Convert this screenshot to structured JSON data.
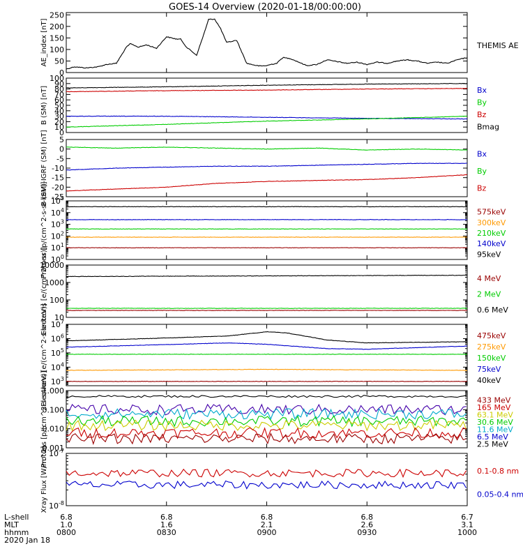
{
  "title": "GOES-14 Overview (2020-01-18/00:00:00)",
  "chart_data": [
    {
      "type": "line",
      "ylabel": "AE_index [nT]",
      "ylim": [
        0,
        260
      ],
      "yscale": "linear",
      "yticks": [
        0,
        50,
        100,
        150,
        200,
        250
      ],
      "yticklabels": [
        "0",
        "50",
        "100",
        "150",
        "200",
        "250"
      ],
      "legend": [
        {
          "name": "THEMIS AE",
          "color": "#000000"
        }
      ],
      "series": [
        {
          "name": "THEMIS AE",
          "color": "#000000",
          "x": [
            0,
            4,
            10,
            16,
            20,
            25,
            30,
            32,
            36,
            40,
            45,
            50,
            55,
            57,
            60,
            65,
            68,
            71,
            74,
            77,
            80,
            85,
            90,
            95,
            97,
            100,
            102,
            105,
            108,
            112,
            120,
            125,
            130,
            140,
            145,
            150,
            155,
            160,
            165,
            170,
            175,
            180,
            185,
            190,
            195,
            200
          ],
          "y": [
            15,
            25,
            20,
            25,
            35,
            40,
            110,
            125,
            110,
            120,
            105,
            155,
            145,
            145,
            110,
            75,
            150,
            230,
            232,
            190,
            130,
            140,
            40,
            30,
            28,
            30,
            35,
            40,
            65,
            60,
            30,
            35,
            55,
            40,
            45,
            35,
            45,
            40,
            50,
            55,
            50,
            40,
            45,
            40,
            55,
            65
          ]
        }
      ]
    },
    {
      "type": "line",
      "ylabel": "B (SM) [nT]",
      "ylim": [
        0,
        100
      ],
      "yscale": "linear",
      "yticks": [
        0,
        10,
        20,
        30,
        40,
        50,
        60,
        70,
        80,
        90,
        100
      ],
      "yticklabels": [
        "0",
        "10",
        "20",
        "30",
        "40",
        "50",
        "60",
        "70",
        "80",
        "90",
        "100"
      ],
      "legend": [
        {
          "name": "Bx",
          "color": "#0000cc"
        },
        {
          "name": "By",
          "color": "#00cc00"
        },
        {
          "name": "Bz",
          "color": "#cc0000"
        },
        {
          "name": "Bmag",
          "color": "#000000"
        }
      ],
      "series": [
        {
          "name": "Bmag",
          "color": "#000000",
          "x": [
            0,
            50,
            100,
            150,
            200
          ],
          "y": [
            82,
            84,
            87,
            89,
            90
          ]
        },
        {
          "name": "Bz",
          "color": "#cc0000",
          "x": [
            0,
            50,
            100,
            150,
            200
          ],
          "y": [
            75,
            77,
            78,
            80,
            81
          ]
        },
        {
          "name": "Bx",
          "color": "#0000cc",
          "x": [
            0,
            50,
            100,
            150,
            200
          ],
          "y": [
            30,
            30,
            28,
            26,
            25
          ]
        },
        {
          "name": "By",
          "color": "#00cc00",
          "x": [
            0,
            50,
            100,
            150,
            200
          ],
          "y": [
            10,
            15,
            21,
            25,
            30
          ]
        }
      ]
    },
    {
      "type": "line",
      "ylabel": "B (SM)-IGRF (SM) [nT]",
      "ylim": [
        -25,
        5
      ],
      "yscale": "linear",
      "yticks": [
        -25,
        -20,
        -15,
        -10,
        -5,
        0,
        5
      ],
      "yticklabels": [
        "-25",
        "-20",
        "-15",
        "-10",
        "-5",
        "0",
        "5"
      ],
      "legend": [
        {
          "name": "Bx",
          "color": "#0000cc"
        },
        {
          "name": "By",
          "color": "#00cc00"
        },
        {
          "name": "Bz",
          "color": "#cc0000"
        }
      ],
      "series": [
        {
          "name": "By",
          "color": "#00cc00",
          "x": [
            0,
            25,
            50,
            75,
            100,
            125,
            150,
            175,
            200
          ],
          "y": [
            1,
            0.5,
            1,
            0.5,
            0,
            0.5,
            -0.5,
            0,
            -0.5
          ]
        },
        {
          "name": "Bx",
          "color": "#0000cc",
          "x": [
            0,
            25,
            50,
            75,
            100,
            125,
            150,
            175,
            200
          ],
          "y": [
            -11,
            -10,
            -9.5,
            -9,
            -9,
            -8.5,
            -8,
            -7.5,
            -7.5
          ]
        },
        {
          "name": "Bz",
          "color": "#cc0000",
          "x": [
            0,
            25,
            50,
            75,
            100,
            125,
            150,
            175,
            200
          ],
          "y": [
            -22,
            -21,
            -20,
            -18,
            -17,
            -16.5,
            -16,
            -15,
            -13.5
          ]
        }
      ]
    },
    {
      "type": "line",
      "ylabel": "Protons [p/(cm^2-s-sr-keV)]",
      "ylim": [
        1,
        100000
      ],
      "yscale": "log",
      "yticks": [
        1,
        10,
        100,
        1000,
        10000,
        100000
      ],
      "yticklabels": [
        "10^0",
        "10^1",
        "10^2",
        "10^3",
        "10^4",
        "10^5"
      ],
      "legend": [
        {
          "name": "575keV",
          "color": "#990000"
        },
        {
          "name": "300keV",
          "color": "#ff9900"
        },
        {
          "name": "210keV",
          "color": "#00cc00"
        },
        {
          "name": "140keV",
          "color": "#0000cc"
        },
        {
          "name": "95keV",
          "color": "#000000"
        }
      ],
      "series": [
        {
          "name": "95keV",
          "color": "#000000",
          "x": [
            0,
            200
          ],
          "y": [
            32000,
            32000
          ]
        },
        {
          "name": "140keV",
          "color": "#0000cc",
          "x": [
            0,
            200
          ],
          "y": [
            2500,
            2500
          ]
        },
        {
          "name": "210keV",
          "color": "#00cc00",
          "x": [
            0,
            200
          ],
          "y": [
            400,
            400
          ]
        },
        {
          "name": "300keV",
          "color": "#ff9900",
          "x": [
            0,
            200
          ],
          "y": [
            80,
            80
          ]
        },
        {
          "name": "575keV",
          "color": "#990000",
          "x": [
            0,
            200
          ],
          "y": [
            10,
            10
          ]
        }
      ]
    },
    {
      "type": "line",
      "ylabel": "Electrons [e/(cm^2-s-sr)]",
      "ylim": [
        10,
        10000
      ],
      "yscale": "log",
      "yticks": [
        10,
        100,
        1000,
        10000
      ],
      "yticklabels": [
        "10",
        "100",
        "1000",
        "10000"
      ],
      "legend": [
        {
          "name": "4 MeV",
          "color": "#990000"
        },
        {
          "name": "2 MeV",
          "color": "#00cc00"
        },
        {
          "name": "0.6 MeV",
          "color": "#000000"
        }
      ],
      "series": [
        {
          "name": "0.6 MeV",
          "color": "#000000",
          "x": [
            0,
            200
          ],
          "y": [
            2200,
            2600
          ]
        },
        {
          "name": "2 MeV",
          "color": "#00cc00",
          "x": [
            0,
            200
          ],
          "y": [
            33,
            33
          ]
        },
        {
          "name": "4 MeV",
          "color": "#990000",
          "x": [
            0,
            200
          ],
          "y": [
            25,
            25
          ]
        }
      ]
    },
    {
      "type": "line",
      "ylabel": "Electrons [e/(cm^2-s-sr-keV)]",
      "ylim": [
        500,
        10000000
      ],
      "yscale": "log",
      "yticks": [
        1000,
        10000,
        100000,
        1000000,
        10000000
      ],
      "yticklabels": [
        "10^3",
        "10^4",
        "10^5",
        "10^6",
        "10^7"
      ],
      "legend": [
        {
          "name": "475keV",
          "color": "#990000"
        },
        {
          "name": "275keV",
          "color": "#ff9900"
        },
        {
          "name": "150keV",
          "color": "#00cc00"
        },
        {
          "name": "75keV",
          "color": "#0000cc"
        },
        {
          "name": "40keV",
          "color": "#000000"
        }
      ],
      "series": [
        {
          "name": "40keV",
          "color": "#000000",
          "x": [
            0,
            40,
            80,
            100,
            110,
            130,
            150,
            200
          ],
          "y": [
            700000,
            1000000,
            1500000,
            3000000,
            2500000,
            800000,
            500000,
            600000
          ]
        },
        {
          "name": "75keV",
          "color": "#0000cc",
          "x": [
            0,
            40,
            80,
            100,
            130,
            150,
            200
          ],
          "y": [
            250000,
            350000,
            500000,
            400000,
            200000,
            180000,
            300000
          ]
        },
        {
          "name": "150keV",
          "color": "#00cc00",
          "x": [
            0,
            200
          ],
          "y": [
            80000,
            80000
          ]
        },
        {
          "name": "275keV",
          "color": "#ff9900",
          "x": [
            0,
            100,
            200
          ],
          "y": [
            6000,
            7000,
            6000
          ]
        },
        {
          "name": "475keV",
          "color": "#990000",
          "x": [
            0,
            200
          ],
          "y": [
            1000,
            1000
          ]
        }
      ]
    },
    {
      "type": "line",
      "ylabel": "Protons [p/(cm^2-s-sr-keV)]",
      "ylim": [
        0.001,
        1.0
      ],
      "yscale": "log",
      "yticks": [
        0.001,
        0.01,
        0.1,
        1.0
      ],
      "yticklabels": [
        "0.001",
        "0.010",
        "0.100",
        "1.000"
      ],
      "legend": [
        {
          "name": "433 MeV",
          "color": "#990000"
        },
        {
          "name": "165 MeV",
          "color": "#cc0000"
        },
        {
          "name": "63.1 MeV",
          "color": "#cccc00"
        },
        {
          "name": "30.6 MeV",
          "color": "#00cc00"
        },
        {
          "name": "11.6 MeV",
          "color": "#00aacc"
        },
        {
          "name": "6.5 MeV",
          "color": "#0000cc"
        },
        {
          "name": "2.5 MeV",
          "color": "#000000"
        }
      ],
      "series": [
        {
          "name": "2.5 MeV",
          "color": "#000000",
          "level": 0.5
        },
        {
          "name": "6.5 MeV",
          "color": "#4400aa",
          "level": 0.1
        },
        {
          "name": "11.6 MeV",
          "color": "#00aacc",
          "level": 0.06
        },
        {
          "name": "30.6 MeV",
          "color": "#00cc00",
          "level": 0.025
        },
        {
          "name": "63.1 MeV",
          "color": "#cccc00",
          "level": 0.015
        },
        {
          "name": "165 MeV",
          "color": "#cc0000",
          "level": 0.006
        },
        {
          "name": "433 MeV",
          "color": "#990000",
          "level": 0.003
        }
      ]
    },
    {
      "type": "line",
      "ylabel": "Xray Flux [W/m^2]",
      "ylim": [
        1e-08,
        1e-07
      ],
      "yscale": "log",
      "yticks": [
        1e-08,
        1e-07
      ],
      "yticklabels": [
        "10^-8",
        "10^-7"
      ],
      "legend": [
        {
          "name": "0.1-0.8 nm",
          "color": "#cc0000"
        },
        {
          "name": "0.05-0.4 nm",
          "color": "#0000cc"
        }
      ],
      "series": [
        {
          "name": "0.1-0.8 nm",
          "color": "#cc0000",
          "level": 4.2e-08
        },
        {
          "name": "0.05-0.4 nm",
          "color": "#0000cc",
          "level": 2.5e-08
        }
      ]
    }
  ],
  "xaxis": {
    "tick_x": [
      0,
      50,
      100,
      150,
      200
    ],
    "row_labels": [
      "L-shell",
      "MLT",
      "hhmm",
      "2020 Jan 18"
    ],
    "rows": [
      [
        "6.8",
        "6.8",
        "6.8",
        "6.8",
        "6.7"
      ],
      [
        "1.0",
        "1.6",
        "2.1",
        "2.6",
        "3.1"
      ],
      [
        "0800",
        "0830",
        "0900",
        "0930",
        "1000"
      ]
    ]
  }
}
